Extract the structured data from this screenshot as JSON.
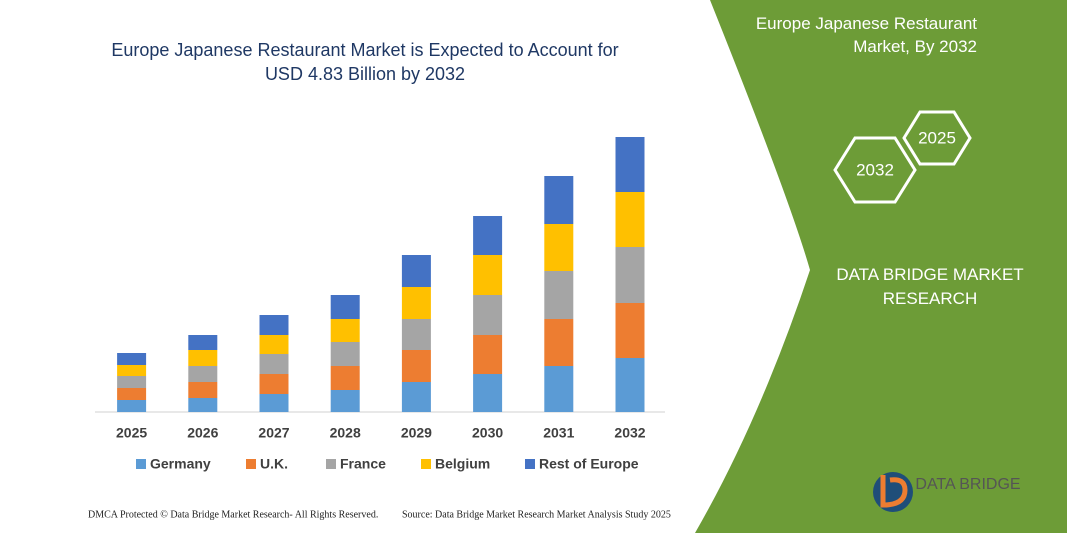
{
  "chart_data": {
    "type": "stacked_bar",
    "title": "Europe Japanese Restaurant Market is Expected to Account for USD 4.83 Billion by 2032",
    "categories": [
      "2025",
      "2026",
      "2027",
      "2028",
      "2029",
      "2030",
      "2031",
      "2032"
    ],
    "series": [
      {
        "name": "Germany",
        "color": "#5b9bd5",
        "values": [
          12,
          14,
          18,
          22,
          30,
          38,
          46,
          54
        ]
      },
      {
        "name": "U.K.",
        "color": "#ed7d31",
        "values": [
          12,
          16,
          20,
          24,
          32,
          39,
          47,
          55
        ]
      },
      {
        "name": "France",
        "color": "#a5a5a5",
        "values": [
          12,
          16,
          20,
          24,
          31,
          40,
          48,
          56
        ]
      },
      {
        "name": "Belgium",
        "color": "#ffc000",
        "values": [
          11,
          16,
          19,
          23,
          32,
          40,
          47,
          55
        ]
      },
      {
        "name": "Rest of Europe",
        "color": "#4472c4",
        "values": [
          12,
          15,
          20,
          24,
          32,
          39,
          48,
          55
        ]
      }
    ],
    "ylim": [
      0,
      280
    ]
  },
  "panel": {
    "title": "Europe Japanese Restaurant Market, By 2032",
    "hex_left": "2032",
    "hex_right": "2025",
    "brand": "DATA BRIDGE MARKET RESEARCH",
    "logo": "DATA BRIDGE"
  },
  "footer": {
    "left": "DMCA Protected © Data Bridge Market Research- All Rights Reserved.",
    "right": "Source: Data Bridge Market Research Market Analysis Study 2025"
  }
}
